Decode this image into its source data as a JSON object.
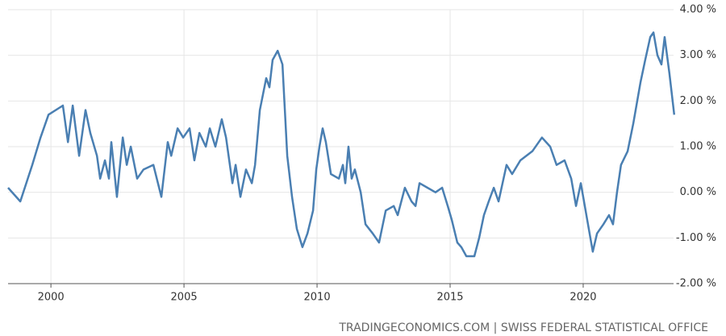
{
  "chart_data": {
    "type": "line",
    "x": [
      1998.39,
      1998.85,
      1999.3,
      1999.61,
      1999.91,
      2000.45,
      2000.64,
      2000.82,
      2001.06,
      2001.3,
      2001.48,
      2001.73,
      2001.85,
      2002.03,
      2002.18,
      2002.27,
      2002.48,
      2002.7,
      2002.85,
      2003.0,
      2003.24,
      2003.48,
      2003.85,
      2004.15,
      2004.39,
      2004.52,
      2004.76,
      2004.97,
      2005.21,
      2005.39,
      2005.58,
      2005.82,
      2005.97,
      2006.18,
      2006.42,
      2006.58,
      2006.82,
      2006.94,
      2007.12,
      2007.33,
      2007.55,
      2007.67,
      2007.85,
      2008.09,
      2008.21,
      2008.33,
      2008.52,
      2008.7,
      2008.88,
      2009.06,
      2009.24,
      2009.45,
      2009.64,
      2009.85,
      2009.97,
      2010.09,
      2010.21,
      2010.33,
      2010.52,
      2010.82,
      2010.97,
      2011.06,
      2011.18,
      2011.3,
      2011.42,
      2011.64,
      2011.82,
      2012.09,
      2012.33,
      2012.58,
      2012.88,
      2013.03,
      2013.3,
      2013.55,
      2013.7,
      2013.85,
      2014.15,
      2014.45,
      2014.7,
      2014.91,
      2015.06,
      2015.27,
      2015.42,
      2015.61,
      2015.91,
      2016.09,
      2016.27,
      2016.45,
      2016.64,
      2016.82,
      2017.12,
      2017.33,
      2017.64,
      2018.09,
      2018.45,
      2018.76,
      2019.0,
      2019.3,
      2019.55,
      2019.73,
      2019.91,
      2020.15,
      2020.36,
      2020.52,
      2020.76,
      2020.97,
      2021.12,
      2021.27,
      2021.42,
      2021.67,
      2021.88,
      2022.15,
      2022.33,
      2022.52,
      2022.64,
      2022.79,
      2022.94,
      2023.06,
      2023.24,
      2023.42
    ],
    "series": [
      {
        "color": "#4a7fb2",
        "values": [
          0.1,
          -0.2,
          0.6,
          1.2,
          1.7,
          1.9,
          1.1,
          1.9,
          0.8,
          1.8,
          1.3,
          0.8,
          0.3,
          0.7,
          0.3,
          1.1,
          -0.1,
          1.2,
          0.6,
          1.0,
          0.3,
          0.5,
          0.6,
          -0.1,
          1.1,
          0.8,
          1.4,
          1.2,
          1.4,
          0.7,
          1.3,
          1.0,
          1.4,
          1.0,
          1.6,
          1.2,
          0.2,
          0.6,
          -0.1,
          0.5,
          0.2,
          0.6,
          1.8,
          2.5,
          2.3,
          2.9,
          3.1,
          2.8,
          0.8,
          -0.1,
          -0.8,
          -1.2,
          -0.9,
          -0.4,
          0.5,
          1.0,
          1.4,
          1.1,
          0.4,
          0.3,
          0.6,
          0.2,
          1.0,
          0.3,
          0.5,
          0.0,
          -0.7,
          -0.9,
          -1.1,
          -0.4,
          -0.3,
          -0.5,
          0.1,
          -0.2,
          -0.3,
          0.2,
          0.1,
          0.0,
          0.1,
          -0.3,
          -0.6,
          -1.1,
          -1.2,
          -1.4,
          -1.4,
          -1.0,
          -0.5,
          -0.2,
          0.1,
          -0.2,
          0.6,
          0.4,
          0.7,
          0.9,
          1.2,
          1.0,
          0.6,
          0.7,
          0.3,
          -0.3,
          0.2,
          -0.6,
          -1.3,
          -0.9,
          -0.7,
          -0.5,
          -0.7,
          0.0,
          0.6,
          0.9,
          1.5,
          2.4,
          2.9,
          3.4,
          3.5,
          3.0,
          2.8,
          3.4,
          2.6,
          1.7
        ]
      }
    ],
    "xlim": [
      1998.39,
      2023.85
    ],
    "xticks": [
      2000,
      2005,
      2010,
      2015,
      2020
    ],
    "ylim": [
      -2,
      4
    ],
    "yticks": [
      {
        "value": -2,
        "label": "-2.00 %"
      },
      {
        "value": -1,
        "label": "-1.00 %"
      },
      {
        "value": 0,
        "label": "0.00 %"
      },
      {
        "value": 1,
        "label": "1.00 %"
      },
      {
        "value": 2,
        "label": "2.00 %"
      },
      {
        "value": 3,
        "label": "3.00 %"
      },
      {
        "value": 4,
        "label": "4.00 %"
      }
    ],
    "grid": true,
    "source": "TRADINGECONOMICS.COM | SWISS FEDERAL STATISTICAL OFFICE"
  }
}
